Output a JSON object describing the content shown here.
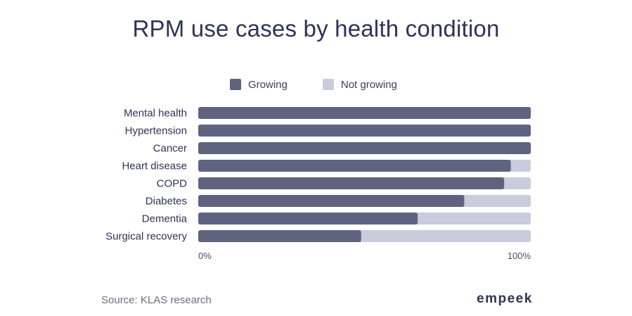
{
  "title": "RPM use cases by health condition",
  "legend": {
    "growing": "Growing",
    "not_growing": "Not growing"
  },
  "colors": {
    "growing": "#5f637f",
    "not_growing": "#cbccdb"
  },
  "chart_data": {
    "type": "bar",
    "orientation": "horizontal",
    "stacked": true,
    "title": "RPM use cases by health condition",
    "categories": [
      "Mental health",
      "Hypertension",
      "Cancer",
      "Heart disease",
      "COPD",
      "Diabetes",
      "Dementia",
      "Surgical recovery"
    ],
    "series": [
      {
        "name": "Growing",
        "values": [
          100,
          100,
          100,
          94,
          92,
          80,
          66,
          49
        ]
      },
      {
        "name": "Not growing",
        "values": [
          0,
          0,
          0,
          6,
          8,
          20,
          34,
          51
        ]
      }
    ],
    "x_tick_labels": [
      "0%",
      "100%"
    ],
    "xlim": [
      0,
      100
    ],
    "legend_position": "top"
  },
  "footer": {
    "source": "Source: KLAS research",
    "brand": "empeek"
  }
}
